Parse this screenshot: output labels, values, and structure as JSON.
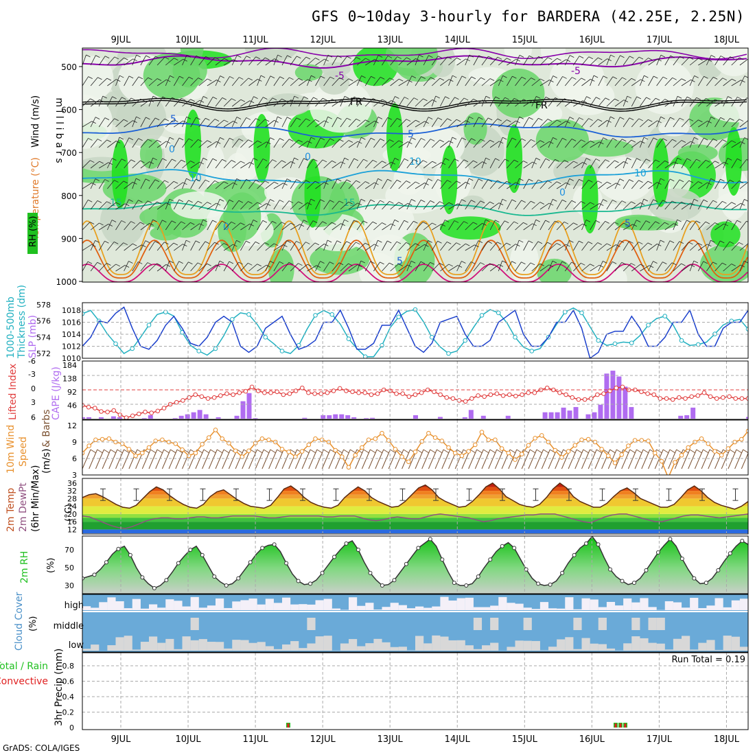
{
  "title": "GFS 0~10day 3-hourly for BARDERA (42.25E, 2.25N)",
  "credit": "GrADS: COLA/IGES",
  "dates": [
    "9JUL",
    "10JUL",
    "11JUL",
    "12JUL",
    "13JUL",
    "14JUL",
    "15JUL",
    "16JUL",
    "17JUL",
    "18JUL"
  ],
  "chart_data": [
    {
      "id": "upper_air",
      "type": "heatmap",
      "ylabel": "m i l l i b a r s",
      "left_labels": [
        "RH (%)",
        "Temperature (°C)",
        "Wind (m/s)"
      ],
      "yticks": [
        500,
        600,
        700,
        800,
        900,
        1000
      ],
      "contour_labels": [
        "-5",
        "-5",
        "FR",
        "FR",
        "5",
        "5",
        "0",
        "0",
        "10",
        "10",
        "10",
        "15",
        "15",
        "0",
        "0",
        "5",
        "5"
      ],
      "contour_colors": {
        "-5": "#8800aa",
        "FR": "#000000",
        "5": "#1a5fd6",
        "0": "#1e8fe0",
        "10": "#1aa0d8",
        "15": "#18b890",
        "20": "#e8a020",
        "25": "#e06010",
        "30": "#d0107a"
      },
      "rh_colors": [
        "#f0f5ec",
        "#dfe8da",
        "#c8d6c4",
        "#6ad66a",
        "#20e020"
      ]
    },
    {
      "id": "thickness_slp",
      "type": "line",
      "left_labels": [
        "1000-500mb",
        "Thickness (dm)",
        "SLP (mb)"
      ],
      "yticks_left": [
        572,
        574,
        576,
        578
      ],
      "yticks_right": [
        1010,
        1012,
        1014,
        1016,
        1018
      ],
      "series": [
        {
          "name": "SLP (mb)",
          "color": "#1a3fcc",
          "values": [
            1012.0,
            1013.5,
            1016.2,
            1015.9,
            1017.5,
            1018.5,
            1015.0,
            1012.0,
            1011.5,
            1013.0,
            1015.5,
            1017.0,
            1015.0,
            1012.5,
            1012.0,
            1013.5,
            1016.0,
            1017.0,
            1016.0,
            1012.0,
            1011.0,
            1012.0,
            1015.0,
            1016.0,
            1017.0,
            1014.0,
            1011.5,
            1012.0,
            1013.0,
            1016.0,
            1016.0,
            1018.0,
            1015.0,
            1011.5,
            1011.5,
            1012.5,
            1015.5,
            1015.5,
            1018.0,
            1015.0,
            1012.0,
            1011.0,
            1012.5,
            1016.0,
            1016.5,
            1017.0,
            1014.0,
            1012.0,
            1012.0,
            1013.0,
            1016.0,
            1017.0,
            1018.0,
            1014.0,
            1012.0,
            1012.0,
            1013.5,
            1016.0,
            1016.0,
            1018.0,
            1015.0,
            1010.0,
            1011.0,
            1014.0,
            1014.5,
            1014.5,
            1017.0,
            1015.0,
            1012.0,
            1012.0,
            1013.5,
            1016.0,
            1016.0,
            1018.0,
            1014.0,
            1012.0,
            1012.0,
            1015.0,
            1016.0,
            1016.0,
            1018.0
          ]
        },
        {
          "name": "1000-500mb Thickness (dm)",
          "color": "#20b0c0",
          "values": [
            576.9,
            577.3,
            576.0,
            574.4,
            573.2,
            572.0,
            572.6,
            574.0,
            575.5,
            576.8,
            577.1,
            576.6,
            574.6,
            573.0,
            572.3,
            571.8,
            572.6,
            574.2,
            576.2,
            577.0,
            576.8,
            575.6,
            574.0,
            573.2,
            572.3,
            572.0,
            573.0,
            575.0,
            576.7,
            577.3,
            576.8,
            575.6,
            573.8,
            572.6,
            571.6,
            571.6,
            573.0,
            575.2,
            576.5,
            577.2,
            577.4,
            575.9,
            574.0,
            572.8,
            572.0,
            572.3,
            573.6,
            575.2,
            576.7,
            577.4,
            577.0,
            575.8,
            574.0,
            572.8,
            572.3,
            572.6,
            574.0,
            575.6,
            577.1,
            577.6,
            577.0,
            575.3,
            573.6,
            573.0,
            573.2,
            573.4,
            573.3,
            574.2,
            575.5,
            576.3,
            576.6,
            575.5,
            573.6,
            573.0,
            573.1,
            573.4,
            574.4,
            575.5,
            576.0,
            576.2,
            575.0
          ]
        }
      ]
    },
    {
      "id": "cape_li",
      "type": "bar",
      "left_labels": [
        "Lifted Index",
        "CAPE (J/kg)"
      ],
      "yticks_left": [
        "-6",
        "-3",
        "0",
        "3",
        "6"
      ],
      "yticks_right": [
        184,
        138,
        92,
        46
      ],
      "series": [
        {
          "name": "CAPE (J/kg)",
          "color": "#b06cf0",
          "values": [
            5,
            5,
            0,
            5,
            0,
            8,
            5,
            0,
            0,
            0,
            2,
            12,
            0,
            0,
            0,
            2,
            10,
            15,
            22,
            30,
            15,
            0,
            5,
            0,
            0,
            10,
            60,
            88,
            2,
            0,
            0,
            0,
            0,
            0,
            0,
            0,
            3,
            0,
            0,
            12,
            12,
            15,
            15,
            12,
            5,
            0,
            2,
            3,
            0,
            0,
            0,
            0,
            0,
            0,
            12,
            0,
            0,
            0,
            6,
            0,
            0,
            0,
            5,
            30,
            0,
            10,
            0,
            0,
            0,
            10,
            0,
            0,
            0,
            0,
            0,
            22,
            22,
            22,
            38,
            28,
            40,
            0,
            15,
            22,
            48,
            155,
            165,
            145,
            110,
            40,
            0,
            0,
            0,
            0,
            0,
            0,
            0,
            10,
            12,
            38,
            0,
            0,
            0,
            0,
            0,
            0,
            0,
            0,
            6
          ]
        },
        {
          "name": "Lifted Index",
          "color": "#e03c3c",
          "values": [
            3.2,
            3.6,
            3.8,
            4.5,
            4.6,
            4.3,
            5.2,
            5.8,
            5.4,
            5.0,
            4.6,
            4.8,
            4.4,
            3.8,
            3.0,
            2.6,
            2.2,
            1.6,
            1.0,
            1.4,
            1.8,
            1.6,
            1.2,
            0.8,
            1.0,
            0.6,
            0.3,
            -0.6,
            0.2,
            0.6,
            0.6,
            0.4,
            1.0,
            0.8,
            0.2,
            -0.4,
            0.6,
            0.8,
            0.8,
            0.6,
            0.2,
            -0.3,
            0.2,
            0.4,
            0.6,
            0.6,
            1.0,
            0.8,
            0.0,
            0.2,
            0.8,
            0.8,
            1.4,
            1.0,
            0.6,
            0.0,
            0.4,
            1.0,
            1.6,
            1.8,
            2.2,
            2.4,
            1.8,
            1.2,
            1.4,
            1.0,
            0.8,
            1.2,
            1.0,
            1.3,
            1.0,
            0.6,
            0.6,
            0.0,
            -0.4,
            0.0,
            0.6,
            1.0,
            1.6,
            2.0,
            2.0,
            1.8,
            1.0,
            0.8,
            0.2,
            -0.4,
            -0.6,
            0.0,
            0.0,
            0.4,
            0.8,
            1.0,
            1.8,
            1.8,
            2.0,
            1.6,
            1.8,
            1.4,
            1.2,
            0.6,
            1.4,
            1.8,
            1.6,
            1.4,
            1.8,
            1.8,
            1.8
          ]
        }
      ],
      "reference_line": 0
    },
    {
      "id": "wind10m",
      "type": "line",
      "left_labels": [
        "10m Wind",
        "Speed",
        "(m/s)",
        "& Barbs"
      ],
      "yticks": [
        3,
        6,
        9,
        12
      ],
      "series": [
        {
          "name": "Speed",
          "color": "#e8902c",
          "values": [
            7.0,
            8.3,
            9.4,
            9.5,
            9.6,
            9.0,
            8.7,
            7.7,
            6.5,
            7.0,
            8.0,
            9.2,
            9.4,
            9.0,
            8.7,
            7.6,
            6.5,
            7.0,
            8.6,
            9.8,
            11.2,
            9.6,
            8.8,
            7.4,
            6.3,
            7.4,
            8.8,
            9.6,
            9.4,
            9.0,
            7.7,
            7.2,
            6.3,
            7.3,
            8.5,
            9.6,
            9.4,
            9.0,
            7.5,
            6.3,
            4.4,
            6.6,
            8.0,
            9.4,
            9.6,
            10.6,
            9.3,
            7.7,
            6.3,
            5.4,
            7.2,
            9.1,
            10.6,
            9.8,
            9.2,
            8.0,
            7.0,
            6.5,
            7.3,
            8.5,
            10.8,
            9.4,
            9.4,
            7.8,
            7.0,
            5.8,
            6.8,
            8.4,
            9.7,
            10.2,
            9.0,
            7.5,
            6.2,
            7.3,
            8.4,
            9.4,
            9.5,
            9.0,
            7.7,
            6.5,
            5.2,
            6.7,
            8.3,
            9.3,
            9.3,
            9.2,
            7.0,
            5.5,
            2.5,
            5.3,
            6.6,
            8.0,
            9.0,
            9.6,
            8.7,
            7.3,
            6.6,
            7.8,
            9.0,
            9.5,
            11.0
          ]
        }
      ]
    },
    {
      "id": "temp2m",
      "type": "area",
      "left_labels": [
        "2m Temp",
        "2m DewPt",
        "(6hr Min/Max)"
      ],
      "yticks": [
        12,
        16,
        20,
        24,
        28,
        32,
        36
      ],
      "series": [
        {
          "name": "2m Temp",
          "color": "#5a2a10",
          "values": [
            28.5,
            30.0,
            30.5,
            29.0,
            27.0,
            25.0,
            23.5,
            23.0,
            24.5,
            28.0,
            31.5,
            34.0,
            32.5,
            29.5,
            27.0,
            25.0,
            23.5,
            23.0,
            25.0,
            29.0,
            31.5,
            32.5,
            30.0,
            27.5,
            25.5,
            24.0,
            23.5,
            23.0,
            24.5,
            28.5,
            33.0,
            34.5,
            32.0,
            28.5,
            26.0,
            24.5,
            23.5,
            23.0,
            24.5,
            28.5,
            31.5,
            34.0,
            32.0,
            28.5,
            26.5,
            25.0,
            23.5,
            24.0,
            26.5,
            30.0,
            33.5,
            35.0,
            32.5,
            28.5,
            26.5,
            25.0,
            23.5,
            24.0,
            26.5,
            30.0,
            34.0,
            36.0,
            33.0,
            29.0,
            27.0,
            25.0,
            24.0,
            23.5,
            25.0,
            28.5,
            33.0,
            36.0,
            33.5,
            29.0,
            26.5,
            25.0,
            23.5,
            23.5,
            25.5,
            29.0,
            32.0,
            33.5,
            31.0,
            28.0,
            26.5,
            25.0,
            23.5,
            23.5,
            25.0,
            28.5,
            32.5,
            34.5,
            32.0,
            28.5,
            26.0,
            24.5,
            23.5,
            22.5,
            24.0,
            26.5
          ]
        },
        {
          "name": "2m DewPt",
          "color": "#905080",
          "values": [
            19.0,
            18.5,
            17.0,
            15.5,
            14.0,
            13.0,
            12.5,
            13.5,
            15.0,
            16.5,
            17.5,
            18.0,
            18.0,
            17.5,
            17.5,
            18.0,
            18.5,
            18.5,
            18.0,
            18.0,
            18.5,
            19.0,
            19.0,
            19.0,
            19.0,
            18.5,
            18.0,
            18.0,
            18.5,
            19.0,
            19.0,
            19.0,
            19.0,
            19.0,
            18.5,
            18.5,
            19.0,
            19.0,
            19.0,
            18.0,
            17.0,
            16.5,
            17.0,
            18.0,
            18.5,
            18.0,
            17.5,
            17.5,
            18.5,
            19.5,
            20.0,
            19.5,
            19.0,
            18.5,
            18.0,
            17.0,
            16.0,
            16.5,
            17.5,
            18.0,
            18.5,
            19.0,
            19.5,
            19.5,
            20.0,
            20.0,
            20.0,
            19.0,
            18.0,
            17.0,
            16.0,
            15.5,
            17.0,
            18.5,
            19.5,
            20.0,
            20.0,
            19.0,
            18.0,
            17.0,
            16.0,
            16.0,
            17.0,
            18.0,
            19.0,
            19.5,
            19.5,
            19.0,
            18.5,
            18.0,
            18.5,
            19.0,
            19.5,
            20.0
          ]
        }
      ],
      "band_colors": [
        "#2a6ae0",
        "#20a030",
        "#40c040",
        "#90e040",
        "#e0ec40",
        "#f0c830",
        "#f0a030",
        "#f08020",
        "#e05010",
        "#c02010"
      ]
    },
    {
      "id": "rh2m",
      "type": "area",
      "left_labels": [
        "2m RH",
        "(%)"
      ],
      "yticks": [
        30,
        50,
        70
      ],
      "series": [
        {
          "name": "2m RH",
          "color": "#20c020",
          "values": [
            38,
            40,
            42,
            48,
            56,
            65,
            71,
            74,
            64,
            50,
            39,
            32,
            27,
            30,
            36,
            45,
            55,
            63,
            70,
            74,
            64,
            52,
            40,
            34,
            30,
            32,
            38,
            47,
            56,
            65,
            72,
            75,
            76,
            68,
            55,
            43,
            35,
            31,
            32,
            36,
            44,
            53,
            62,
            70,
            77,
            80,
            70,
            56,
            44,
            36,
            30,
            31,
            36,
            45,
            54,
            63,
            72,
            77,
            82,
            74,
            59,
            45,
            33,
            30,
            30,
            32,
            40,
            50,
            59,
            68,
            74,
            78,
            72,
            60,
            48,
            38,
            32,
            30,
            31,
            35,
            44,
            55,
            64,
            72,
            77,
            85,
            76,
            61,
            48,
            40,
            35,
            31,
            33,
            38,
            47,
            57,
            67,
            75,
            82,
            74,
            60,
            48,
            38,
            32,
            33,
            38,
            47,
            57,
            66,
            74,
            80,
            76
          ]
        }
      ]
    },
    {
      "id": "cloud_cover",
      "type": "heatmap",
      "left_labels": [
        "Cloud Cover",
        "(%)"
      ],
      "rows": [
        "high",
        "middle",
        "low"
      ]
    },
    {
      "id": "precip",
      "type": "bar",
      "left_labels": [
        "3hr Precip (mm)",
        "Total / Rain",
        "Convective"
      ],
      "yticks": [
        0,
        0.2,
        0.4,
        0.6,
        0.8
      ],
      "run_total": "Run Total = 0.19",
      "series": [
        {
          "name": "Total / Rain",
          "color": "#20c020",
          "values": [
            0.02,
            0.03,
            0.03,
            0.02
          ]
        },
        {
          "name": "Convective",
          "color": "#e02020",
          "values": [
            0.01,
            0.01,
            0.02,
            0.01
          ]
        }
      ]
    }
  ]
}
